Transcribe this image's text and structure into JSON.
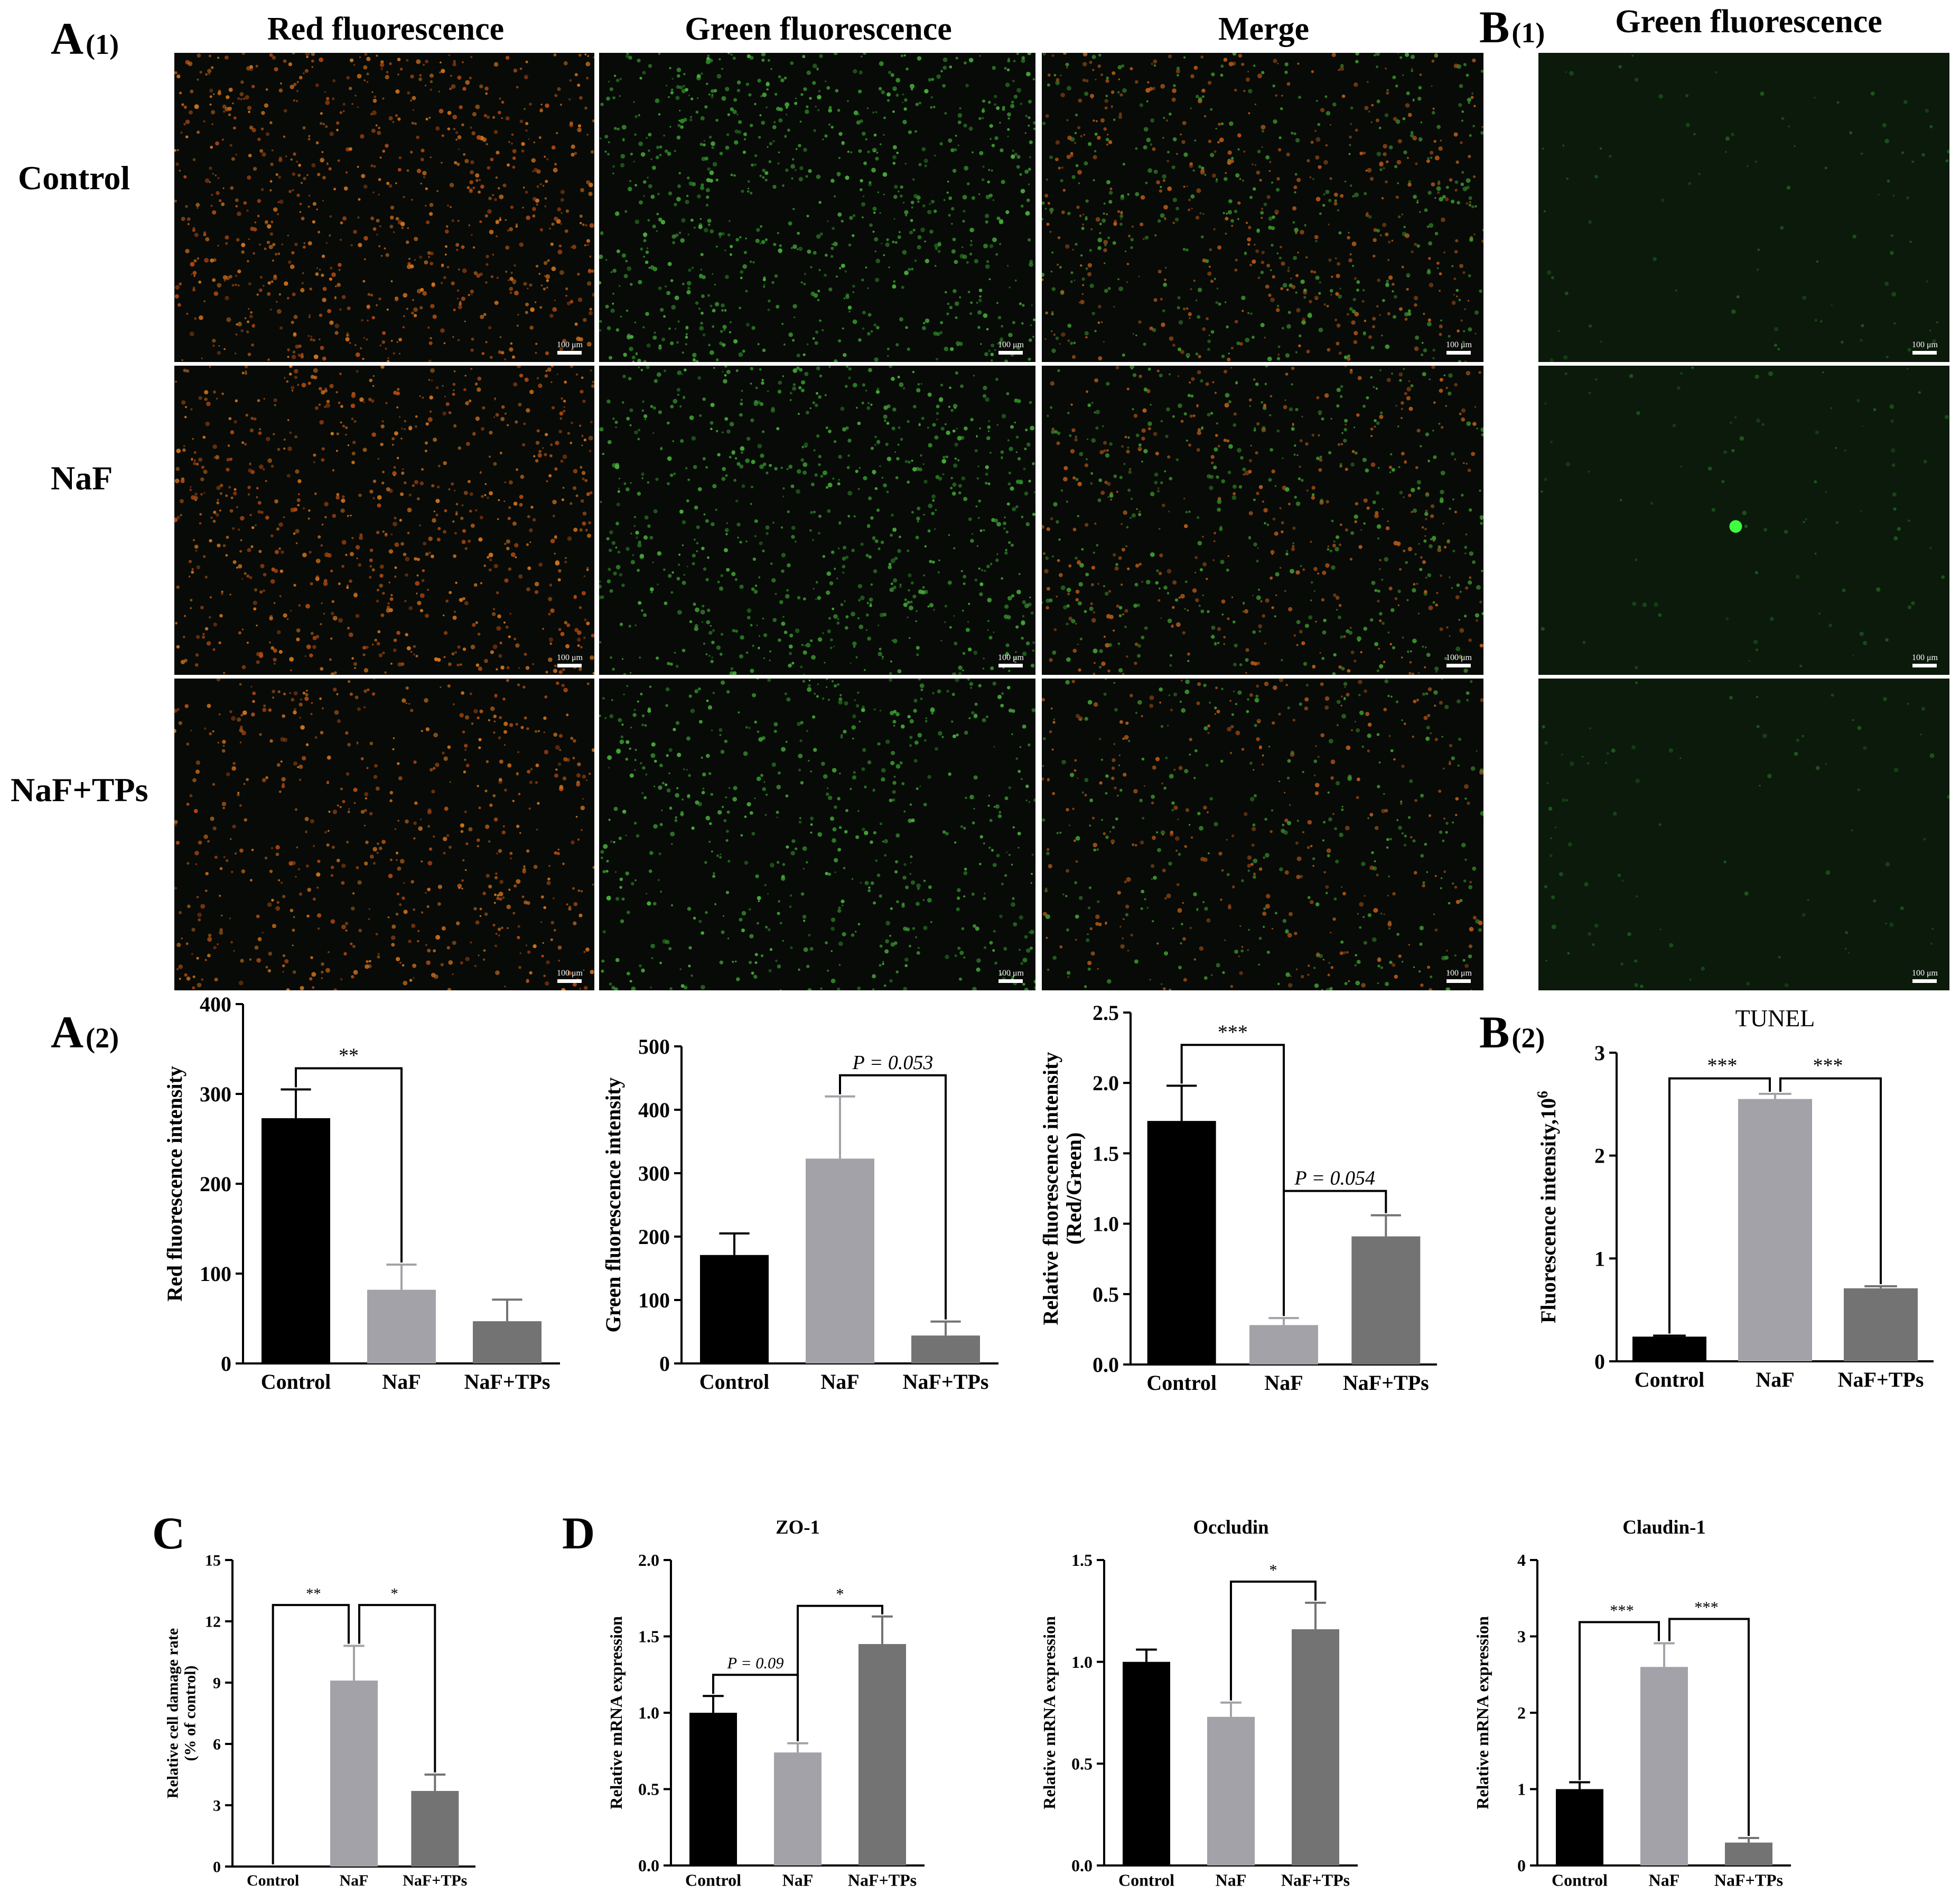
{
  "panels": {
    "A1": {
      "letter": "A",
      "sub": "(1)"
    },
    "B1": {
      "letter": "B",
      "sub": "(1)"
    },
    "A2": {
      "letter": "A",
      "sub": "(2)"
    },
    "B2": {
      "letter": "B",
      "sub": "(2)"
    },
    "C": {
      "letter": "C"
    },
    "D": {
      "letter": "D"
    }
  },
  "micrographs": {
    "column_headers": [
      "Red fluorescence",
      "Green fluorescence",
      "Merge"
    ],
    "b_column_header": "Green fluorescence",
    "row_labels": [
      "Control",
      "NaF",
      "NaF+TPs"
    ],
    "scale_label": "100 μm"
  },
  "chart_data": [
    {
      "id": "a2_red",
      "type": "bar",
      "categories": [
        "Control",
        "NaF",
        "NaF+TPs"
      ],
      "values": [
        273,
        82,
        47
      ],
      "errors": [
        32,
        28,
        24
      ],
      "colors": [
        "#000000",
        "#a2a2a8",
        "#737373"
      ],
      "ylabel": "Red fluorescence intensity",
      "ylim": [
        0,
        400
      ],
      "yticks": [
        "0",
        "100",
        "200",
        "300",
        "400"
      ],
      "significance": [
        {
          "from": 0,
          "to": 1,
          "label": "**"
        }
      ]
    },
    {
      "id": "a2_green",
      "type": "bar",
      "categories": [
        "Control",
        "NaF",
        "NaF+TPs"
      ],
      "values": [
        171,
        323,
        44
      ],
      "errors": [
        34,
        98,
        22
      ],
      "colors": [
        "#000000",
        "#a2a2a8",
        "#737373"
      ],
      "ylabel": "Green fluorescence intensity",
      "ylim": [
        0,
        500
      ],
      "yticks": [
        "0",
        "100",
        "200",
        "300",
        "400",
        "500"
      ],
      "significance": [
        {
          "from": 1,
          "to": 2,
          "label": "P = 0.053"
        }
      ]
    },
    {
      "id": "a2_ratio",
      "type": "bar",
      "categories": [
        "Control",
        "NaF",
        "NaF+TPs"
      ],
      "values": [
        1.73,
        0.28,
        0.91
      ],
      "errors": [
        0.25,
        0.05,
        0.15
      ],
      "colors": [
        "#000000",
        "#a2a2a8",
        "#737373"
      ],
      "ylabel": "Relative fluorescence intensity",
      "ylabel2": "(Red/Green)",
      "ylim": [
        0,
        2.5
      ],
      "yticks": [
        "0.0",
        "0.5",
        "1.0",
        "1.5",
        "2.0",
        "2.5"
      ],
      "significance": [
        {
          "from": 0,
          "to": 1,
          "label": "***"
        },
        {
          "from": 1,
          "to": 2,
          "label": "P = 0.054"
        }
      ]
    },
    {
      "id": "b2_tunel",
      "type": "bar",
      "title": "TUNEL",
      "categories": [
        "Control",
        "NaF",
        "NaF+TPs"
      ],
      "values": [
        0.24,
        2.55,
        0.71
      ],
      "errors": [
        0.01,
        0.05,
        0.02
      ],
      "colors": [
        "#000000",
        "#a2a2a8",
        "#737373"
      ],
      "ylabel": "Fluorescence intensity,10",
      "ylabel_sup": "6",
      "ylim": [
        0,
        3
      ],
      "yticks": [
        "0",
        "1",
        "2",
        "3"
      ],
      "significance": [
        {
          "from": 0,
          "to": 1,
          "label": "***"
        },
        {
          "from": 1,
          "to": 2,
          "label": "***"
        }
      ]
    },
    {
      "id": "c_damage",
      "type": "bar",
      "categories": [
        "Control",
        "NaF",
        "NaF+TPs"
      ],
      "values": [
        0,
        9.1,
        3.7
      ],
      "errors": [
        0,
        1.7,
        0.8
      ],
      "colors": [
        "#000000",
        "#a2a2a8",
        "#737373"
      ],
      "ylabel": "Relative cell damage rate",
      "ylabel2": "(% of control)",
      "ylim": [
        0,
        15
      ],
      "yticks": [
        "0",
        "3",
        "6",
        "9",
        "12",
        "15"
      ],
      "significance": [
        {
          "from": 0,
          "to": 1,
          "label": "**"
        },
        {
          "from": 1,
          "to": 2,
          "label": "*"
        }
      ]
    },
    {
      "id": "d_zo1",
      "type": "bar",
      "title": "ZO-1",
      "categories": [
        "Control",
        "NaF",
        "NaF+TPs"
      ],
      "values": [
        1.0,
        0.74,
        1.45
      ],
      "errors": [
        0.11,
        0.06,
        0.18
      ],
      "colors": [
        "#000000",
        "#a2a2a8",
        "#737373"
      ],
      "ylabel": "Relative mRNA expression",
      "ylim": [
        0,
        2.0
      ],
      "yticks": [
        "0.0",
        "0.5",
        "1.0",
        "1.5",
        "2.0"
      ],
      "significance": [
        {
          "from": 0,
          "to": 1,
          "label": "P = 0.09"
        },
        {
          "from": 1,
          "to": 2,
          "label": "*"
        }
      ]
    },
    {
      "id": "d_occludin",
      "type": "bar",
      "title": "Occludin",
      "categories": [
        "Control",
        "NaF",
        "NaF+TPs"
      ],
      "values": [
        1.0,
        0.73,
        1.16
      ],
      "errors": [
        0.06,
        0.07,
        0.13
      ],
      "colors": [
        "#000000",
        "#a2a2a8",
        "#737373"
      ],
      "ylabel": "Relative mRNA expression",
      "ylim": [
        0,
        1.5
      ],
      "yticks": [
        "0.0",
        "0.5",
        "1.0",
        "1.5"
      ],
      "significance": [
        {
          "from": 1,
          "to": 2,
          "label": "*"
        }
      ]
    },
    {
      "id": "d_claudin1",
      "type": "bar",
      "title": "Claudin-1",
      "categories": [
        "Control",
        "NaF",
        "NaF+TPs"
      ],
      "values": [
        1.0,
        2.6,
        0.3
      ],
      "errors": [
        0.09,
        0.31,
        0.06
      ],
      "colors": [
        "#000000",
        "#a2a2a8",
        "#737373"
      ],
      "ylabel": "Relative mRNA expression",
      "ylim": [
        0,
        4
      ],
      "yticks": [
        "0",
        "1",
        "2",
        "3",
        "4"
      ],
      "significance": [
        {
          "from": 0,
          "to": 1,
          "label": "***"
        },
        {
          "from": 1,
          "to": 2,
          "label": "***"
        }
      ]
    }
  ]
}
